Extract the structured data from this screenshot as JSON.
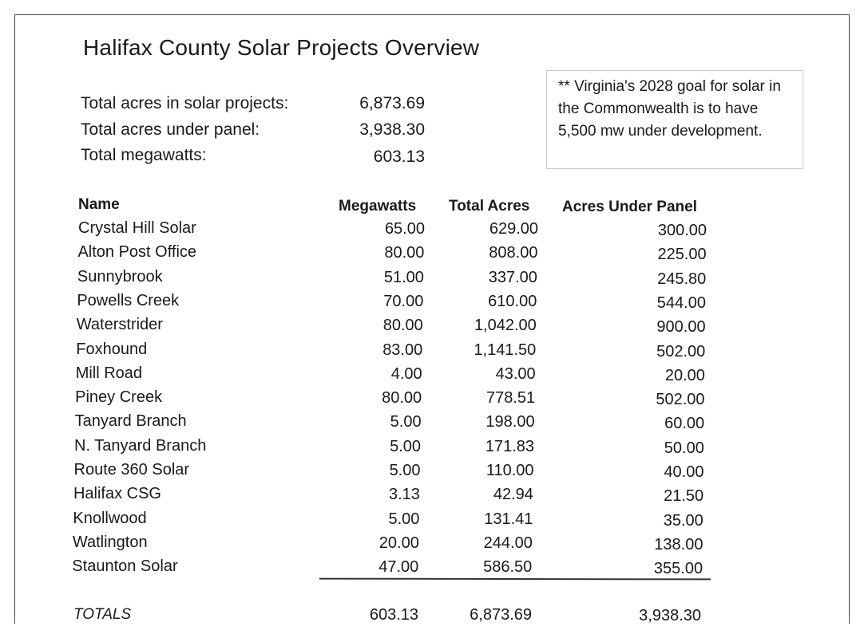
{
  "title": "Halifax County Solar Projects Overview",
  "summary": [
    {
      "label": "Total acres in solar projects:",
      "value": "6,873.69"
    },
    {
      "label": "Total acres under panel:",
      "value": "3,938.30"
    },
    {
      "label": "Total megawatts:",
      "value": "603.13"
    }
  ],
  "note": "** Virginia's 2028 goal for solar in the Commonwealth is to have 5,500 mw under development.",
  "table": {
    "headers": [
      "Name",
      "Megawatts",
      "Total Acres",
      "Acres Under Panel"
    ],
    "rows": [
      [
        "Crystal Hill Solar",
        "65.00",
        "629.00",
        "300.00"
      ],
      [
        "Alton Post Office",
        "80.00",
        "808.00",
        "225.00"
      ],
      [
        "Sunnybrook",
        "51.00",
        "337.00",
        "245.80"
      ],
      [
        "Powells Creek",
        "70.00",
        "610.00",
        "544.00"
      ],
      [
        "Waterstrider",
        "80.00",
        "1,042.00",
        "900.00"
      ],
      [
        "Foxhound",
        "83.00",
        "1,141.50",
        "502.00"
      ],
      [
        "Mill Road",
        "4.00",
        "43.00",
        "20.00"
      ],
      [
        "Piney Creek",
        "80.00",
        "778.51",
        "502.00"
      ],
      [
        "Tanyard Branch",
        "5.00",
        "198.00",
        "60.00"
      ],
      [
        "N. Tanyard Branch",
        "5.00",
        "171.83",
        "50.00"
      ],
      [
        "Route 360 Solar",
        "5.00",
        "110.00",
        "40.00"
      ],
      [
        "Halifax CSG",
        "3.13",
        "42.94",
        "21.50"
      ],
      [
        "Knollwood",
        "5.00",
        "131.41",
        "35.00"
      ],
      [
        "Watlington",
        "20.00",
        "244.00",
        "138.00"
      ],
      [
        "Staunton Solar",
        "47.00",
        "586.50",
        "355.00"
      ]
    ],
    "totals": {
      "label": "TOTALS",
      "megawatts": "603.13",
      "total_acres": "6,873.69",
      "acres_under_panel": "3,938.30"
    }
  }
}
